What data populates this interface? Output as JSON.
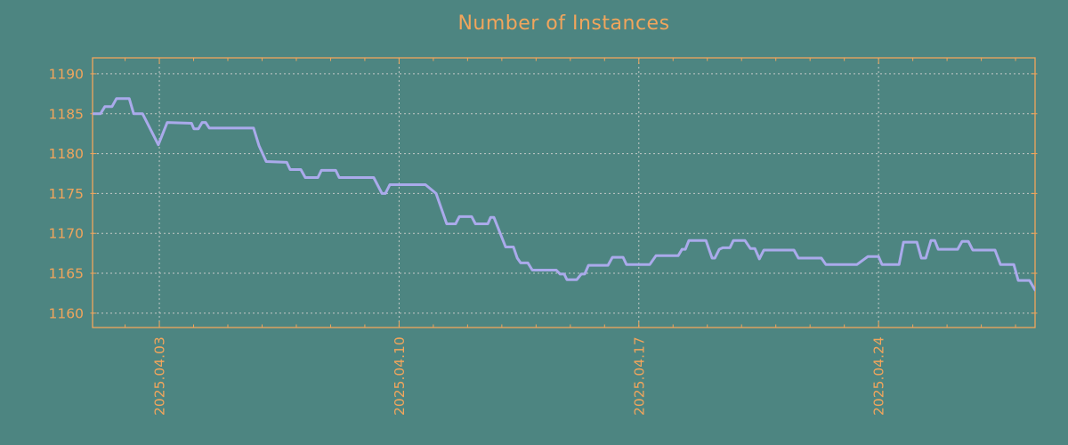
{
  "title": "Number of Instances",
  "colors": {
    "background": "#4d8581",
    "accent_orange": "#f1a55c",
    "line": "#aaaaeb",
    "grid": "#c3c8c6"
  },
  "chart_data": {
    "type": "line",
    "title": "Number of Instances",
    "xlabel": "",
    "ylabel": "",
    "grid": true,
    "legend": false,
    "x_unit": "day of April 2025",
    "x_range": [
      1.05,
      28.57
    ],
    "y_range": [
      1158.2,
      1192.0
    ],
    "y_ticks": [
      1160,
      1165,
      1170,
      1175,
      1180,
      1185,
      1190
    ],
    "x_major_ticks": [
      {
        "day": 3,
        "label": "2025.04.03"
      },
      {
        "day": 10,
        "label": "2025.04.10"
      },
      {
        "day": 17,
        "label": "2025.04.17"
      },
      {
        "day": 24,
        "label": "2025.04.24"
      }
    ],
    "x_minor_tick_days": [
      2,
      3,
      4,
      5,
      6,
      7,
      8,
      9,
      10,
      11,
      12,
      13,
      14,
      15,
      16,
      17,
      18,
      19,
      20,
      21,
      22,
      23,
      24,
      25,
      26,
      27,
      28
    ],
    "series": [
      {
        "name": "instances",
        "points": [
          [
            1.08,
            1185.0
          ],
          [
            1.28,
            1185.0
          ],
          [
            1.41,
            1185.9
          ],
          [
            1.62,
            1185.9
          ],
          [
            1.75,
            1186.9
          ],
          [
            2.12,
            1186.9
          ],
          [
            2.25,
            1185.0
          ],
          [
            2.51,
            1185.0
          ],
          [
            2.97,
            1181.1
          ],
          [
            3.23,
            1183.9
          ],
          [
            3.94,
            1183.8
          ],
          [
            4.01,
            1183.1
          ],
          [
            4.14,
            1183.1
          ],
          [
            4.25,
            1183.9
          ],
          [
            4.35,
            1183.9
          ],
          [
            4.46,
            1183.2
          ],
          [
            5.75,
            1183.2
          ],
          [
            5.91,
            1181.0
          ],
          [
            6.12,
            1179.0
          ],
          [
            6.72,
            1178.9
          ],
          [
            6.82,
            1178.0
          ],
          [
            7.13,
            1178.0
          ],
          [
            7.26,
            1177.0
          ],
          [
            7.63,
            1177.0
          ],
          [
            7.73,
            1177.9
          ],
          [
            8.15,
            1177.9
          ],
          [
            8.25,
            1177.0
          ],
          [
            9.26,
            1177.0
          ],
          [
            9.5,
            1175.0
          ],
          [
            9.6,
            1175.0
          ],
          [
            9.73,
            1176.1
          ],
          [
            10.77,
            1176.1
          ],
          [
            11.08,
            1175.0
          ],
          [
            11.39,
            1171.2
          ],
          [
            11.65,
            1171.2
          ],
          [
            11.76,
            1172.1
          ],
          [
            12.12,
            1172.1
          ],
          [
            12.23,
            1171.2
          ],
          [
            12.59,
            1171.2
          ],
          [
            12.67,
            1172.0
          ],
          [
            12.77,
            1172.0
          ],
          [
            13.11,
            1168.3
          ],
          [
            13.34,
            1168.3
          ],
          [
            13.45,
            1166.9
          ],
          [
            13.55,
            1166.3
          ],
          [
            13.76,
            1166.3
          ],
          [
            13.89,
            1165.4
          ],
          [
            14.59,
            1165.4
          ],
          [
            14.7,
            1164.9
          ],
          [
            14.82,
            1164.9
          ],
          [
            14.9,
            1164.2
          ],
          [
            15.19,
            1164.2
          ],
          [
            15.32,
            1164.9
          ],
          [
            15.42,
            1164.9
          ],
          [
            15.53,
            1166.0
          ],
          [
            16.1,
            1166.0
          ],
          [
            16.23,
            1167.0
          ],
          [
            16.54,
            1167.0
          ],
          [
            16.64,
            1166.1
          ],
          [
            17.32,
            1166.1
          ],
          [
            17.5,
            1167.2
          ],
          [
            18.15,
            1167.2
          ],
          [
            18.26,
            1168.0
          ],
          [
            18.36,
            1168.0
          ],
          [
            18.46,
            1169.1
          ],
          [
            18.96,
            1169.1
          ],
          [
            19.14,
            1166.9
          ],
          [
            19.22,
            1166.9
          ],
          [
            19.35,
            1168.0
          ],
          [
            19.45,
            1168.2
          ],
          [
            19.66,
            1168.2
          ],
          [
            19.76,
            1169.1
          ],
          [
            20.1,
            1169.1
          ],
          [
            20.26,
            1168.1
          ],
          [
            20.39,
            1168.1
          ],
          [
            20.52,
            1166.8
          ],
          [
            20.65,
            1167.9
          ],
          [
            21.53,
            1167.9
          ],
          [
            21.66,
            1166.9
          ],
          [
            22.33,
            1166.9
          ],
          [
            22.46,
            1166.1
          ],
          [
            23.37,
            1166.1
          ],
          [
            23.69,
            1167.1
          ],
          [
            24.0,
            1167.1
          ],
          [
            24.1,
            1166.1
          ],
          [
            24.6,
            1166.1
          ],
          [
            24.73,
            1168.9
          ],
          [
            25.12,
            1168.9
          ],
          [
            25.25,
            1166.9
          ],
          [
            25.38,
            1166.9
          ],
          [
            25.53,
            1169.1
          ],
          [
            25.64,
            1169.1
          ],
          [
            25.74,
            1168.0
          ],
          [
            26.31,
            1168.0
          ],
          [
            26.44,
            1169.0
          ],
          [
            26.62,
            1169.0
          ],
          [
            26.75,
            1167.9
          ],
          [
            27.4,
            1167.9
          ],
          [
            27.56,
            1166.1
          ],
          [
            27.95,
            1166.1
          ],
          [
            28.08,
            1164.1
          ],
          [
            28.41,
            1164.1
          ],
          [
            28.57,
            1162.9
          ]
        ]
      }
    ]
  }
}
